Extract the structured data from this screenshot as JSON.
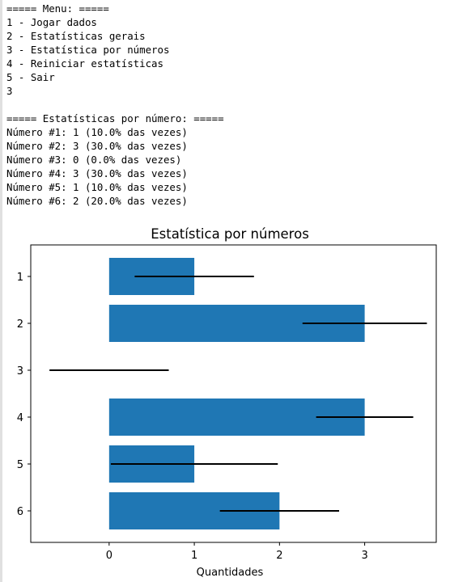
{
  "console": {
    "lines": [
      "===== Menu: =====",
      "1 - Jogar dados",
      "2 - Estatísticas gerais",
      "3 - Estatística por números",
      "4 - Reiniciar estatísticas",
      "5 - Sair",
      "3",
      "",
      "===== Estatísticas por número: =====",
      "Número #1: 1 (10.0% das vezes)",
      "Número #2: 3 (30.0% das vezes)",
      "Número #3: 0 (0.0% das vezes)",
      "Número #4: 3 (30.0% das vezes)",
      "Número #5: 1 (10.0% das vezes)",
      "Número #6: 2 (20.0% das vezes)"
    ]
  },
  "chart_data": {
    "type": "bar",
    "orientation": "horizontal",
    "title": "Estatística por números",
    "xlabel": "Quantidades",
    "ylabel": "",
    "categories": [
      "1",
      "2",
      "3",
      "4",
      "5",
      "6"
    ],
    "values": [
      1,
      3,
      0,
      3,
      1,
      2
    ],
    "error_bars": [
      [
        0.3,
        1.7
      ],
      [
        2.27,
        3.73
      ],
      [
        -0.7,
        0.7
      ],
      [
        2.43,
        3.57
      ],
      [
        0.02,
        1.98
      ],
      [
        1.3,
        2.7
      ]
    ],
    "xlim": [
      -0.92,
      3.84
    ],
    "xticks": [
      0,
      1,
      2,
      3
    ],
    "bar_color": "#1f77b4",
    "errorbar_color": "#000000",
    "grid": false,
    "legend": "none"
  }
}
